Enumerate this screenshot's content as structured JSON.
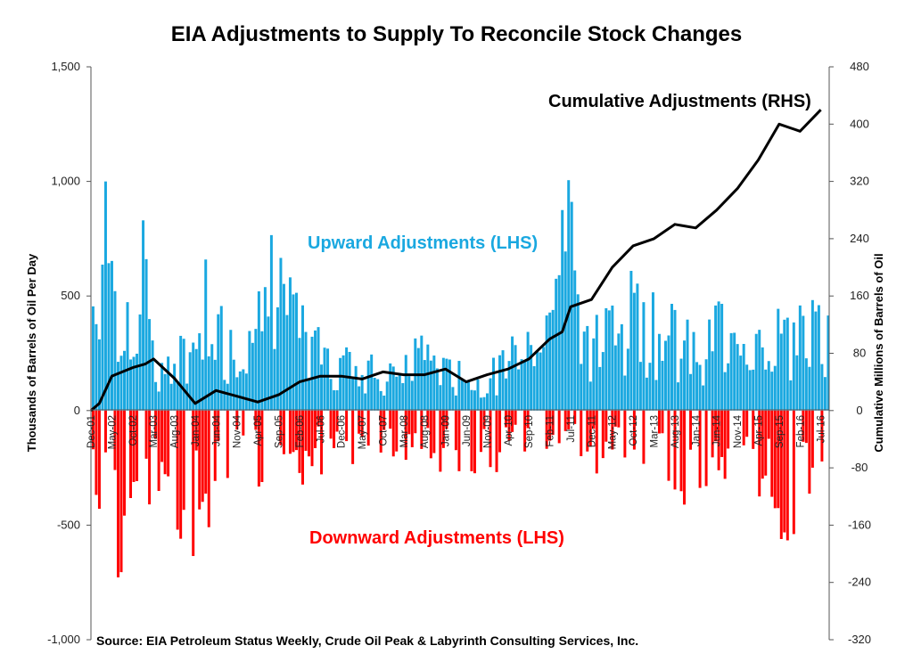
{
  "chart_data": {
    "type": "bar",
    "title": "EIA Adjustments to Supply To Reconcile Stock Changes",
    "ylabel": "Thousands of Barrels of Oil Per Day",
    "y2label": "Cumulative Millions of Barrels of Oil",
    "ylim": [
      -1000,
      1500
    ],
    "y2lim": [
      -320,
      480
    ],
    "yticks": [
      "1,500",
      "1,000",
      "500",
      "0",
      "-500",
      "-1,000"
    ],
    "y2ticks": [
      "480",
      "400",
      "320",
      "240",
      "160",
      "80",
      "0",
      "-80",
      "-160",
      "-240",
      "-320"
    ],
    "xticks": [
      "Dec-01",
      "May-02",
      "Oct-02",
      "Mar-03",
      "Aug-03",
      "Jan-04",
      "Jun-04",
      "Nov-04",
      "Apr-05",
      "Sep-05",
      "Feb-06",
      "Jul-06",
      "Dec-06",
      "May-07",
      "Oct-07",
      "Mar-08",
      "Aug-08",
      "Jan-09",
      "Jun-09",
      "Nov-09",
      "Apr-10",
      "Sep-10",
      "Feb-11",
      "Jul-11",
      "Dec-11",
      "May-12",
      "Oct-12",
      "Mar-13",
      "Aug-13",
      "Jan-14",
      "Jun-14",
      "Nov-14",
      "Apr-15",
      "Sep-15",
      "Feb-16",
      "Jul-16"
    ],
    "annotations": {
      "upward": "Upward Adjustments (LHS)",
      "downward": "Downward Adjustments (LHS)",
      "cumulative": "Cumulative Adjustments (RHS)"
    },
    "source": "Source: EIA Petroleum Status Weekly, Crude Oil Peak & Labyrinth Consulting Services, Inc.",
    "colors": {
      "upward": "#1aa8e0",
      "downward": "#ff0000",
      "cumulative": "#000000"
    },
    "upward_peaks": [
      [
        "Dec-01",
        700
      ],
      [
        "Mar-02",
        1240
      ],
      [
        "May-02",
        800
      ],
      [
        "Oct-02",
        550
      ],
      [
        "Dec-02",
        920
      ],
      [
        "Mar-03",
        300
      ],
      [
        "Aug-03",
        250
      ],
      [
        "Mar-04",
        740
      ],
      [
        "Nov-04",
        300
      ],
      [
        "Sep-05",
        980
      ],
      [
        "Dec-05",
        550
      ],
      [
        "Jul-06",
        380
      ],
      [
        "Dec-06",
        300
      ],
      [
        "May-07",
        280
      ],
      [
        "Oct-07",
        240
      ],
      [
        "Mar-08",
        300
      ],
      [
        "Aug-08",
        450
      ],
      [
        "Jan-09",
        250
      ],
      [
        "Jun-09",
        200
      ],
      [
        "Nov-09",
        240
      ],
      [
        "Apr-10",
        300
      ],
      [
        "Sep-10",
        560
      ],
      [
        "Feb-11",
        460
      ],
      [
        "Jun-11",
        1220
      ],
      [
        "Jul-11",
        1140
      ],
      [
        "Dec-11",
        400
      ],
      [
        "May-12",
        550
      ],
      [
        "Oct-12",
        650
      ],
      [
        "Mar-13",
        500
      ],
      [
        "Aug-13",
        480
      ],
      [
        "Jan-14",
        390
      ],
      [
        "Jun-14",
        550
      ],
      [
        "Nov-14",
        680
      ],
      [
        "Apr-15",
        500
      ],
      [
        "Sep-15",
        490
      ],
      [
        "Feb-16",
        550
      ],
      [
        "Jul-16",
        580
      ]
    ],
    "downward_peaks": [
      [
        "Dec-01",
        -570
      ],
      [
        "May-02",
        -770
      ],
      [
        "Oct-02",
        -670
      ],
      [
        "Mar-03",
        -450
      ],
      [
        "Aug-03",
        -560
      ],
      [
        "Jan-04",
        -850
      ],
      [
        "Jun-04",
        -350
      ],
      [
        "Nov-04",
        -330
      ],
      [
        "Apr-05",
        -420
      ],
      [
        "Sep-05",
        -300
      ],
      [
        "Feb-06",
        -330
      ],
      [
        "Jul-06",
        -280
      ],
      [
        "Dec-06",
        -260
      ],
      [
        "May-07",
        -250
      ],
      [
        "Oct-07",
        -200
      ],
      [
        "Mar-08",
        -220
      ],
      [
        "Aug-08",
        -250
      ],
      [
        "Jan-09",
        -300
      ],
      [
        "Jun-09",
        -440
      ],
      [
        "Nov-09",
        -250
      ],
      [
        "Apr-10",
        -300
      ],
      [
        "Sep-10",
        -280
      ],
      [
        "Feb-11",
        -270
      ],
      [
        "Jul-11",
        -220
      ],
      [
        "Dec-11",
        -300
      ],
      [
        "May-12",
        -250
      ],
      [
        "Oct-12",
        -330
      ],
      [
        "Mar-13",
        -310
      ],
      [
        "Aug-13",
        -460
      ],
      [
        "Jan-14",
        -360
      ],
      [
        "Jun-14",
        -300
      ],
      [
        "Nov-14",
        -300
      ],
      [
        "Apr-15",
        -390
      ],
      [
        "Sep-15",
        -610
      ],
      [
        "Feb-16",
        -510
      ],
      [
        "Jul-16",
        -300
      ]
    ],
    "cumulative_series": [
      [
        "Dec-01",
        0
      ],
      [
        "Feb-02",
        10
      ],
      [
        "May-02",
        48
      ],
      [
        "Oct-02",
        60
      ],
      [
        "Jan-03",
        65
      ],
      [
        "Mar-03",
        72
      ],
      [
        "Aug-03",
        45
      ],
      [
        "Jan-04",
        10
      ],
      [
        "Jun-04",
        28
      ],
      [
        "Nov-04",
        20
      ],
      [
        "Apr-05",
        12
      ],
      [
        "Sep-05",
        22
      ],
      [
        "Feb-06",
        40
      ],
      [
        "Jul-06",
        48
      ],
      [
        "Dec-06",
        48
      ],
      [
        "May-07",
        44
      ],
      [
        "Oct-07",
        54
      ],
      [
        "Mar-08",
        50
      ],
      [
        "Aug-08",
        50
      ],
      [
        "Jan-09",
        58
      ],
      [
        "Jun-09",
        40
      ],
      [
        "Nov-09",
        50
      ],
      [
        "Apr-10",
        58
      ],
      [
        "Sep-10",
        72
      ],
      [
        "Feb-11",
        100
      ],
      [
        "May-11",
        110
      ],
      [
        "Jul-11",
        145
      ],
      [
        "Dec-11",
        155
      ],
      [
        "May-12",
        200
      ],
      [
        "Oct-12",
        230
      ],
      [
        "Mar-13",
        240
      ],
      [
        "Aug-13",
        260
      ],
      [
        "Jan-14",
        255
      ],
      [
        "Jun-14",
        280
      ],
      [
        "Nov-14",
        310
      ],
      [
        "Apr-15",
        350
      ],
      [
        "Sep-15",
        400
      ],
      [
        "Feb-16",
        390
      ],
      [
        "Jul-16",
        420
      ]
    ]
  }
}
